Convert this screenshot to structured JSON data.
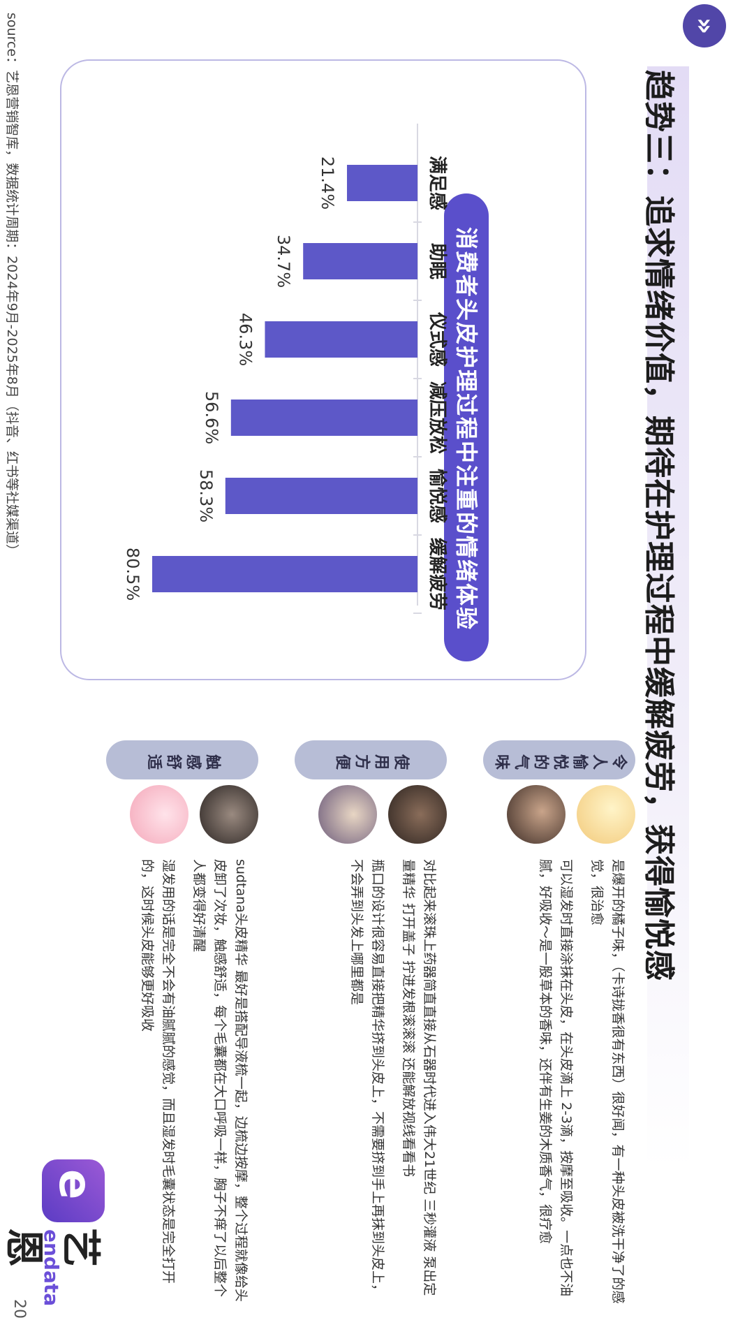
{
  "brand": {
    "cn": "艺恩",
    "en": "endata",
    "mark": "e"
  },
  "header": {
    "icon": "double-chevron-icon",
    "icon_glyph": "»",
    "title": "趋势三：追求情绪价值，期待在护理过程中缓解疲劳，获得愉悦感"
  },
  "chart_data": {
    "type": "bar",
    "title": "消费者头皮护理过程中注重的情绪体验",
    "categories": [
      "缓解疲劳",
      "愉悦感",
      "减压放松",
      "仪式感",
      "助眠",
      "满足感"
    ],
    "values": [
      80.5,
      58.3,
      56.6,
      46.3,
      34.7,
      21.4
    ],
    "labels": [
      "80.5%",
      "58.3%",
      "56.6%",
      "46.3%",
      "34.7%",
      "21.4%"
    ],
    "unit": "%",
    "ylim": [
      0,
      100
    ],
    "bar_color": "#5d58c8",
    "grid": false
  },
  "sections": [
    {
      "label": "令人愉悦的气味",
      "avatars": [
        "avatar-cartoon-icon",
        "avatar-photo-icon"
      ],
      "quotes": [
        "是爆开的橘子味，（卡诗拢香很有东西）很好闻，有一种头皮被洗干净了的感觉，很治愈",
        "可以湿发时直接涂抹在头皮，在头皮滴上 2-3滴，按摩至吸收。一点也不油腻，好吸收～是一股草本的香味，还伴有生姜的木质香气，很疗愈"
      ]
    },
    {
      "label": "使用方便",
      "avatars": [
        "avatar-photo-icon",
        "avatar-photo-icon"
      ],
      "quotes": [
        "对比起来滚珠上药器简直直接从石器时代进入伟大21世纪 三秒灌液 泵出定量精华 打开盖子 拧进发根滚滚滚 还能解放视线看看书",
        "瓶口的设计很容易直接把精华挤到头皮上，不需要挤到手上再抹到头皮上，不会弄到头发上哪里都是"
      ]
    },
    {
      "label": "触感舒适",
      "avatars": [
        "avatar-photo-icon",
        "avatar-cartoon-icon"
      ],
      "quotes": [
        "sudtana头皮精华 最好是搭配导液梳一起，边梳边按摩，整个过程就像给头皮卸了次妆，触感舒适，每个毛囊都在大口呼吸一样，胸子不痒了以后整个人都变得好清醒",
        "湿发用的话是完全不会有油腻腻的感觉，而且湿发时毛囊状态是完全打开的，这时候头皮能够更好吸收"
      ]
    }
  ],
  "footer": {
    "source": "source：艺恩营销智库，数据统计周期：2024年9月-2025年8月（抖音、红书等社媒渠道）",
    "page": "20"
  }
}
